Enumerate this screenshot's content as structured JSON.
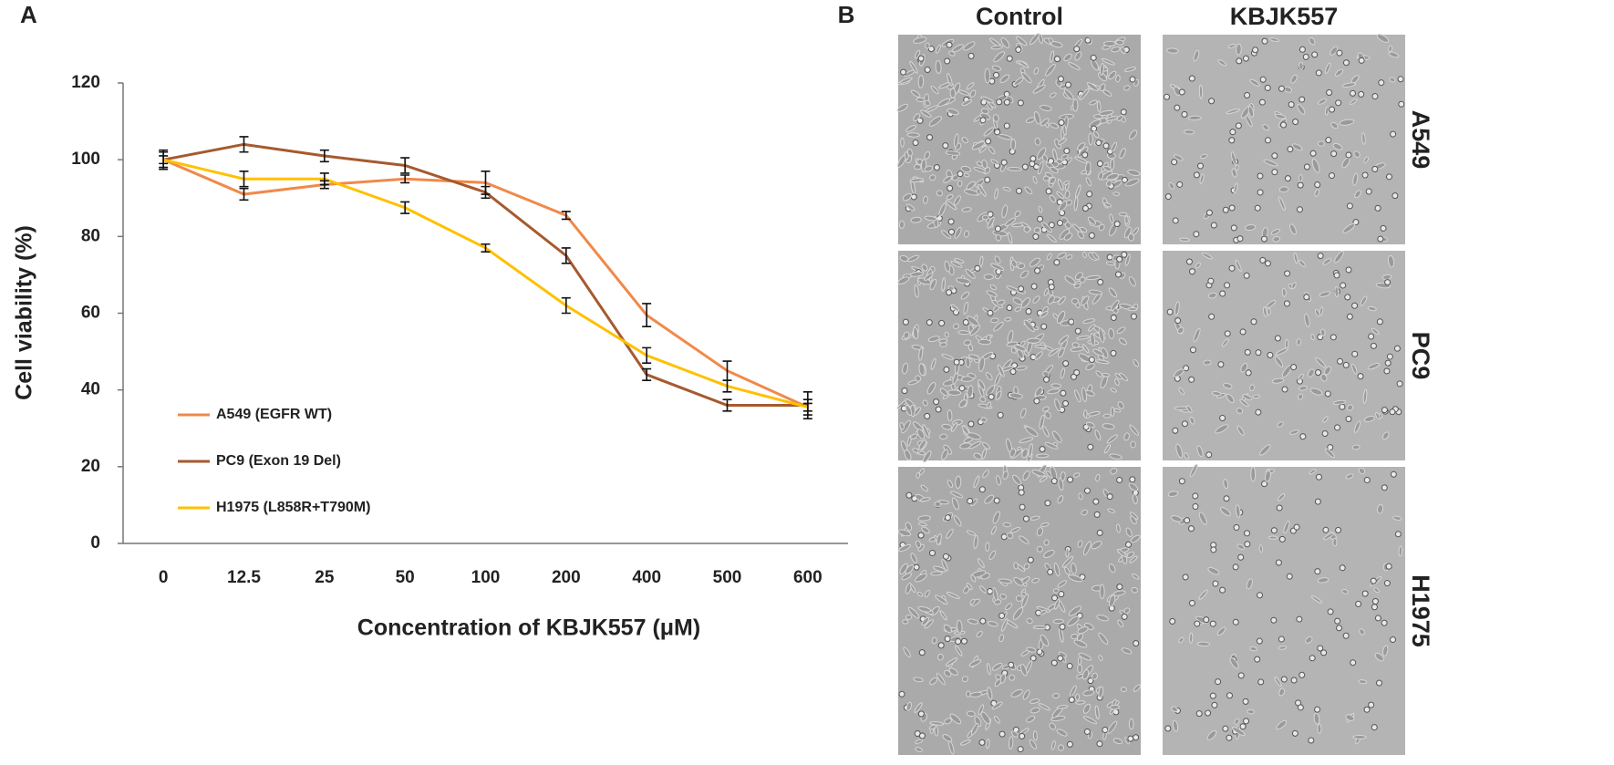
{
  "chart_data": {
    "type": "line",
    "panel_label": "A",
    "x_label": "Concentration of KBJK557 (μM)",
    "y_label": "Cell viability  (%)",
    "categories": [
      "0",
      "12.5",
      "25",
      "50",
      "100",
      "200",
      "400",
      "500",
      "600"
    ],
    "series": [
      {
        "name": "A549 (EGFR WT)",
        "color": "#f0894a",
        "values": [
          100,
          91,
          93.5,
          95,
          94,
          85.5,
          59.5,
          45,
          35.5
        ],
        "errors": [
          2,
          1.5,
          1,
          1,
          3,
          1,
          3,
          2.5,
          2
        ]
      },
      {
        "name": "PC9 (Exon 19 Del)",
        "color": "#a65a2e",
        "values": [
          100,
          104,
          101,
          98.5,
          91.5,
          75,
          44,
          36,
          36
        ],
        "errors": [
          1,
          2,
          1.5,
          2,
          1.5,
          2,
          1.5,
          1.5,
          3.5
        ]
      },
      {
        "name": "H1975 (L858R+T790M)",
        "color": "#ffc000",
        "values": [
          100,
          95,
          95,
          87.5,
          77,
          62,
          49,
          41,
          35.5
        ],
        "errors": [
          2.5,
          2,
          1.5,
          1.5,
          1,
          2,
          2,
          1.5,
          1
        ]
      }
    ],
    "ylim": [
      0,
      120
    ],
    "yticks": [
      0,
      20,
      40,
      60,
      80,
      100,
      120
    ],
    "grid": false
  },
  "micrographs": {
    "panel_label": "B",
    "columns": [
      "Control",
      "KBJK557"
    ],
    "rows": [
      "A549",
      "PC9",
      "H1975"
    ]
  }
}
